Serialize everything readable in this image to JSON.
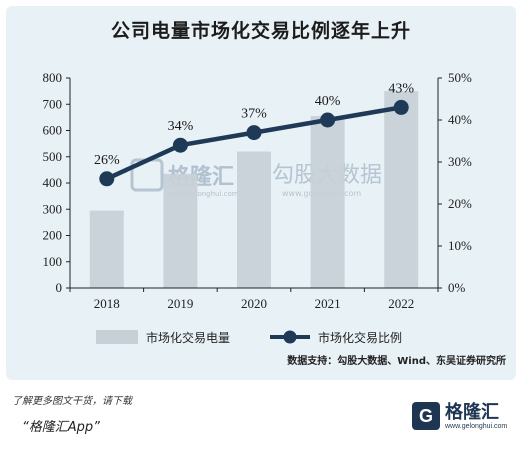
{
  "title": "公司电量市场化交易比例逐年上升",
  "source": "数据支持：勾股大数据、Wind、东吴证券研究所",
  "watermark": {
    "main": "格隆汇",
    "sub": "www.gelonghui.com",
    "secondary": "勾股大数据",
    "secondary_url": "www.gogudata.com"
  },
  "footer": {
    "note": "了解更多图文干货，请下载",
    "app": "“格隆汇App”"
  },
  "brand": {
    "mark": "G",
    "name": "格隆汇",
    "url": "www.gelonghui.com"
  },
  "colors": {
    "bar": "#c7d0d6",
    "line": "#1e3a56",
    "background": "#e8f1f6"
  },
  "chart_data": {
    "type": "bar+line",
    "categories": [
      "2018",
      "2019",
      "2020",
      "2021",
      "2022"
    ],
    "series": [
      {
        "name": "市场化交易电量",
        "type": "bar",
        "axis": "left",
        "values": [
          295,
          435,
          520,
          655,
          750
        ]
      },
      {
        "name": "市场化交易比例",
        "type": "line",
        "axis": "right",
        "values": [
          26,
          34,
          37,
          40,
          43
        ],
        "labels": [
          "26%",
          "34%",
          "37%",
          "40%",
          "43%"
        ]
      }
    ],
    "y_left": {
      "min": 0,
      "max": 800,
      "ticks": [
        "0",
        "100",
        "200",
        "300",
        "400",
        "500",
        "600",
        "700",
        "800"
      ]
    },
    "y_right": {
      "min": 0,
      "max": 50,
      "ticks": [
        "0%",
        "10%",
        "20%",
        "30%",
        "40%",
        "50%"
      ]
    },
    "legend": {
      "position": "bottom",
      "items": [
        "市场化交易电量",
        "市场化交易比例"
      ]
    },
    "grid": false
  }
}
